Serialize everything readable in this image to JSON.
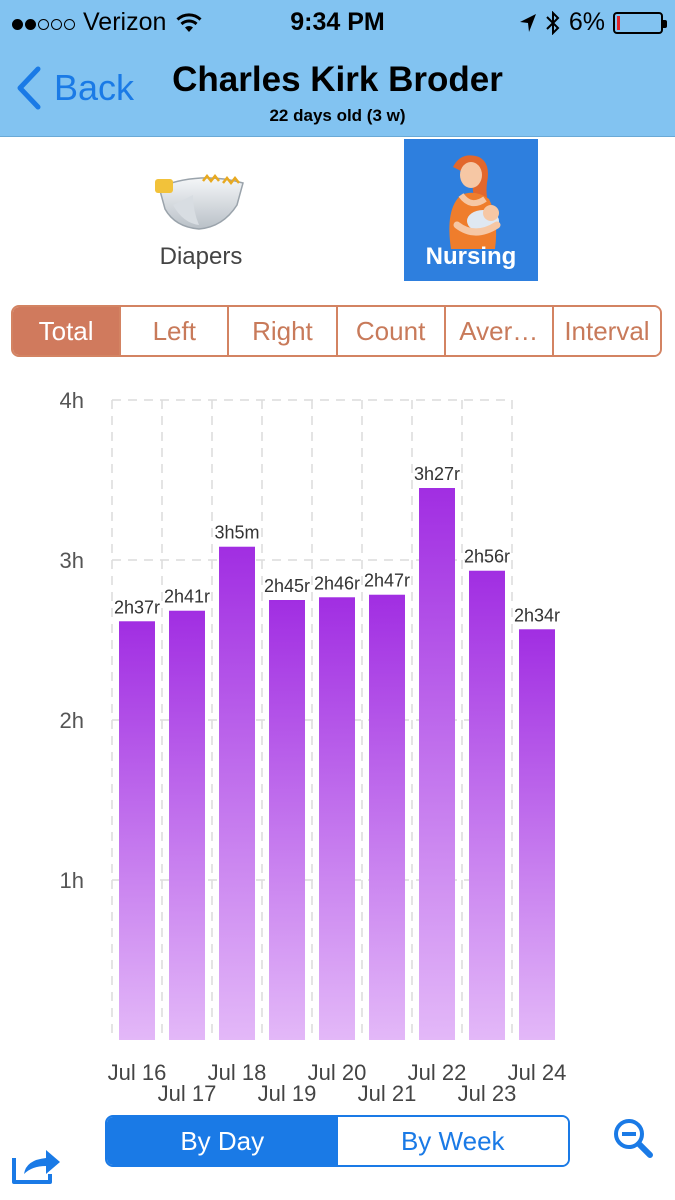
{
  "status_bar": {
    "carrier": "Verizon",
    "time": "9:34 PM",
    "battery": "6%",
    "battery_level": 0.06,
    "signal_strength": 2,
    "signal_max": 5
  },
  "nav": {
    "back_label": "Back",
    "title": "Charles Kirk Broder",
    "subtitle": "22 days old (3 w)"
  },
  "categories": [
    {
      "label": "Diapers",
      "icon": "diaper-icon",
      "selected": false
    },
    {
      "label": "Nursing",
      "icon": "nursing-mother-icon",
      "selected": true
    }
  ],
  "metric_tabs": [
    {
      "label": "Total",
      "selected": true
    },
    {
      "label": "Left",
      "selected": false
    },
    {
      "label": "Right",
      "selected": false
    },
    {
      "label": "Count",
      "selected": false
    },
    {
      "label": "Aver…",
      "selected": false
    },
    {
      "label": "Interval",
      "selected": false
    }
  ],
  "period_tabs": [
    {
      "label": "By Day",
      "selected": true
    },
    {
      "label": "By Week",
      "selected": false
    }
  ],
  "icons": {
    "share": "share-icon",
    "zoom": "zoom-out-icon",
    "back": "chevron-left-icon"
  },
  "colors": {
    "header": "#82c3f1",
    "accent_blue": "#1a7ae6",
    "metric_accent": "#d07a5d",
    "bar_top": "#a12ee2",
    "bar_bottom": "#e3b8f8"
  },
  "chart_data": {
    "type": "bar",
    "categories": [
      "Jul 16",
      "Jul 17",
      "Jul 18",
      "Jul 19",
      "Jul 20",
      "Jul 21",
      "Jul 22",
      "Jul 23",
      "Jul 24"
    ],
    "values": [
      2.617,
      2.683,
      3.083,
      2.75,
      2.767,
      2.783,
      3.45,
      2.933,
      2.567
    ],
    "data_labels": [
      "2h37r",
      "2h41r",
      "3h5m",
      "2h45r",
      "2h46r",
      "2h47r",
      "3h27r",
      "2h56r",
      "2h34r"
    ],
    "y_ticks": [
      {
        "value": 1,
        "label": "1h"
      },
      {
        "value": 2,
        "label": "2h"
      },
      {
        "value": 3,
        "label": "3h"
      },
      {
        "value": 4,
        "label": "4h"
      }
    ],
    "ylim": [
      0,
      4
    ],
    "grid": true,
    "legend": "none"
  }
}
